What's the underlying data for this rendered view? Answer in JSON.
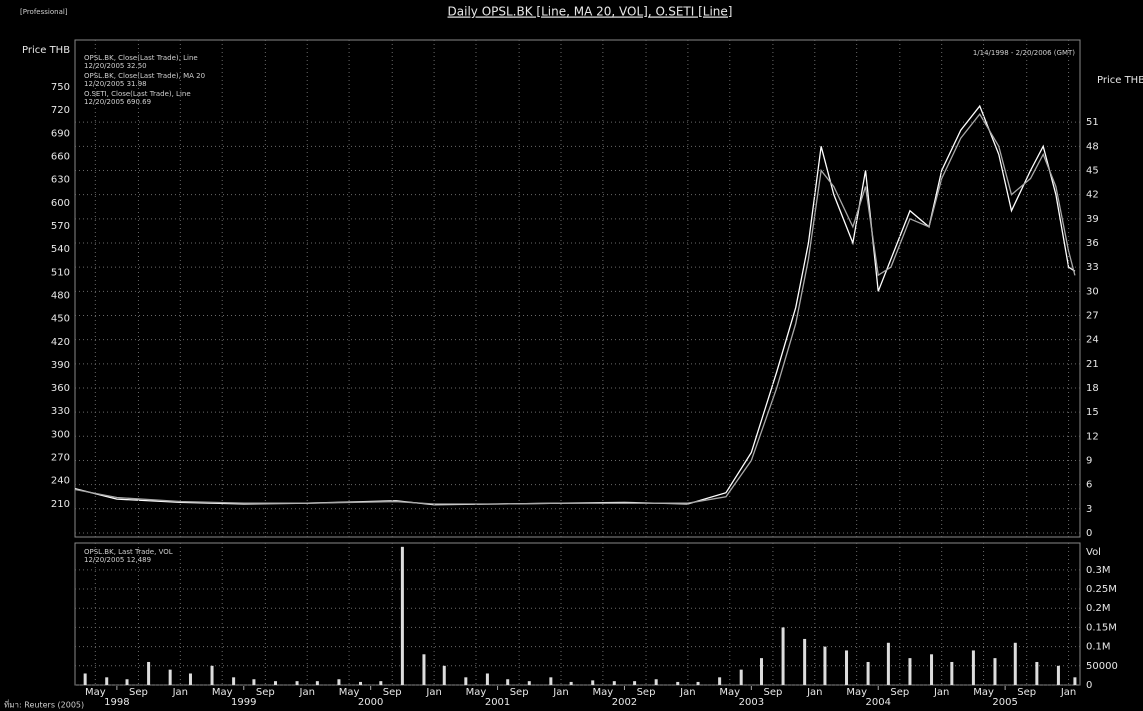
{
  "chart_data": [
    {
      "type": "line",
      "title": "Daily OPSL.BK [Line, MA 20, VOL], O.SETI [Line]",
      "corner_label": "[Professional]",
      "y_label": "Price THB",
      "y2_label": "Price THB",
      "date_range": "1/14/1998 - 2/20/2006 (GMT)",
      "legend": [
        {
          "name": "OPSL.BK, Close(Last Trade), Line",
          "detail": "12/20/2005 32.50"
        },
        {
          "name": "OPSL.BK, Close(Last Trade), MA 20",
          "detail": "12/20/2005 31.98"
        },
        {
          "name": "O.SETI, Close(Last Trade), Line",
          "detail": "12/20/2005 690.69"
        }
      ],
      "xlim": [
        1998.17,
        2006.09
      ],
      "ylim": [
        167,
        811
      ],
      "yticks": [
        210,
        240,
        270,
        300,
        330,
        360,
        390,
        420,
        450,
        480,
        510,
        540,
        570,
        600,
        630,
        660,
        690,
        720,
        750
      ],
      "y2lim": [
        -0.5,
        61.2
      ],
      "y2ticks": [
        0,
        3,
        6,
        9,
        12,
        15,
        18,
        21,
        24,
        27,
        30,
        33,
        36,
        39,
        42,
        45,
        48,
        51
      ],
      "grid": true,
      "x": [
        1998.17,
        1998.5,
        1999,
        1999.5,
        2000,
        2000.7,
        2001,
        2001.5,
        2002,
        2002.5,
        2003,
        2003.3,
        2003.5,
        2003.7,
        2003.85,
        2003.95,
        2004.05,
        2004.15,
        2004.3,
        2004.4,
        2004.5,
        2004.6,
        2004.75,
        2004.9,
        2005,
        2005.15,
        2005.3,
        2005.45,
        2005.55,
        2005.7,
        2005.8,
        2005.9,
        2006,
        2006.05
      ],
      "series": [
        {
          "name": "OPSL.BK, Close(Last Trade), Line",
          "color": "#ffffff",
          "axis": "y2",
          "values": [
            5.5,
            4.2,
            3.8,
            3.6,
            3.7,
            4.0,
            3.5,
            3.6,
            3.7,
            3.8,
            3.6,
            5,
            10,
            20,
            28,
            36,
            48,
            42,
            36,
            45,
            30,
            34,
            40,
            38,
            45,
            50,
            53,
            47,
            40,
            45,
            48,
            42,
            33,
            32.5
          ]
        },
        {
          "name": "OPSL.BK, Close(Last Trade), MA 20",
          "color": "#a8a8a8",
          "axis": "y2",
          "values": [
            5.4,
            4.4,
            3.9,
            3.7,
            3.7,
            3.9,
            3.6,
            3.6,
            3.7,
            3.7,
            3.7,
            4.5,
            9,
            18,
            26,
            34,
            45,
            43,
            38,
            43,
            32,
            33,
            39,
            38,
            44,
            49,
            52,
            48,
            42,
            44,
            47,
            43,
            35,
            31.98
          ]
        }
      ]
    },
    {
      "type": "bar",
      "legend": [
        {
          "name": "OPSL.BK, Last Trade, VOL",
          "detail": "12/20/2005 12,489"
        }
      ],
      "y_label": "Vol",
      "xlim": [
        1998.17,
        2006.09
      ],
      "ylim": [
        0,
        370000
      ],
      "yticks": [
        0,
        50000,
        {
          "value": 100000,
          "label": "0.1M"
        },
        {
          "value": 150000,
          "label": "0.15M"
        },
        {
          "value": 200000,
          "label": "0.2M"
        },
        {
          "value": 250000,
          "label": "0.25M"
        },
        {
          "value": 300000,
          "label": "0.3M"
        }
      ],
      "grid": true,
      "color": "#dddddd",
      "xticks": [
        {
          "value": 1998.33,
          "label": "May"
        },
        {
          "value": 1998.67,
          "label": "Sep"
        },
        {
          "value": 1999,
          "label": "Jan"
        },
        {
          "value": 1999.33,
          "label": "May"
        },
        {
          "value": 1999.67,
          "label": "Sep"
        },
        {
          "value": 2000,
          "label": "Jan"
        },
        {
          "value": 2000.33,
          "label": "May"
        },
        {
          "value": 2000.67,
          "label": "Sep"
        },
        {
          "value": 2001,
          "label": "Jan"
        },
        {
          "value": 2001.33,
          "label": "May"
        },
        {
          "value": 2001.67,
          "label": "Sep"
        },
        {
          "value": 2002,
          "label": "Jan"
        },
        {
          "value": 2002.33,
          "label": "May"
        },
        {
          "value": 2002.67,
          "label": "Sep"
        },
        {
          "value": 2003,
          "label": "Jan"
        },
        {
          "value": 2003.33,
          "label": "May"
        },
        {
          "value": 2003.67,
          "label": "Sep"
        },
        {
          "value": 2004,
          "label": "Jan"
        },
        {
          "value": 2004.33,
          "label": "May"
        },
        {
          "value": 2004.67,
          "label": "Sep"
        },
        {
          "value": 2005,
          "label": "Jan"
        },
        {
          "value": 2005.33,
          "label": "May"
        },
        {
          "value": 2005.67,
          "label": "Sep"
        },
        {
          "value": 2006,
          "label": "Jan"
        }
      ],
      "year_ticks": [
        {
          "value": 1998.5,
          "label": "1998"
        },
        {
          "value": 1999.5,
          "label": "1999"
        },
        {
          "value": 2000.5,
          "label": "2000"
        },
        {
          "value": 2001.5,
          "label": "2001"
        },
        {
          "value": 2002.5,
          "label": "2002"
        },
        {
          "value": 2003.5,
          "label": "2003"
        },
        {
          "value": 2004.5,
          "label": "2004"
        },
        {
          "value": 2005.5,
          "label": "2005"
        }
      ],
      "x": [
        1998.25,
        1998.42,
        1998.58,
        1998.75,
        1998.92,
        1999.08,
        1999.25,
        1999.42,
        1999.58,
        1999.75,
        1999.92,
        2000.08,
        2000.25,
        2000.42,
        2000.58,
        2000.75,
        2000.92,
        2001.08,
        2001.25,
        2001.42,
        2001.58,
        2001.75,
        2001.92,
        2002.08,
        2002.25,
        2002.42,
        2002.58,
        2002.75,
        2002.92,
        2003.08,
        2003.25,
        2003.42,
        2003.58,
        2003.75,
        2003.92,
        2004.08,
        2004.25,
        2004.42,
        2004.58,
        2004.75,
        2004.92,
        2005.08,
        2005.25,
        2005.42,
        2005.58,
        2005.75,
        2005.92,
        2006.05
      ],
      "values": [
        30000,
        20000,
        15000,
        60000,
        40000,
        30000,
        50000,
        20000,
        15000,
        10000,
        10000,
        10000,
        15000,
        8000,
        10000,
        360000,
        80000,
        50000,
        20000,
        30000,
        15000,
        10000,
        20000,
        8000,
        12000,
        10000,
        10000,
        15000,
        8000,
        8000,
        20000,
        40000,
        70000,
        150000,
        120000,
        100000,
        90000,
        60000,
        110000,
        70000,
        80000,
        60000,
        90000,
        70000,
        110000,
        60000,
        50000,
        20000
      ]
    },
    {
      "type": "caption",
      "text": "ที่มา: Reuters (2005)"
    }
  ]
}
